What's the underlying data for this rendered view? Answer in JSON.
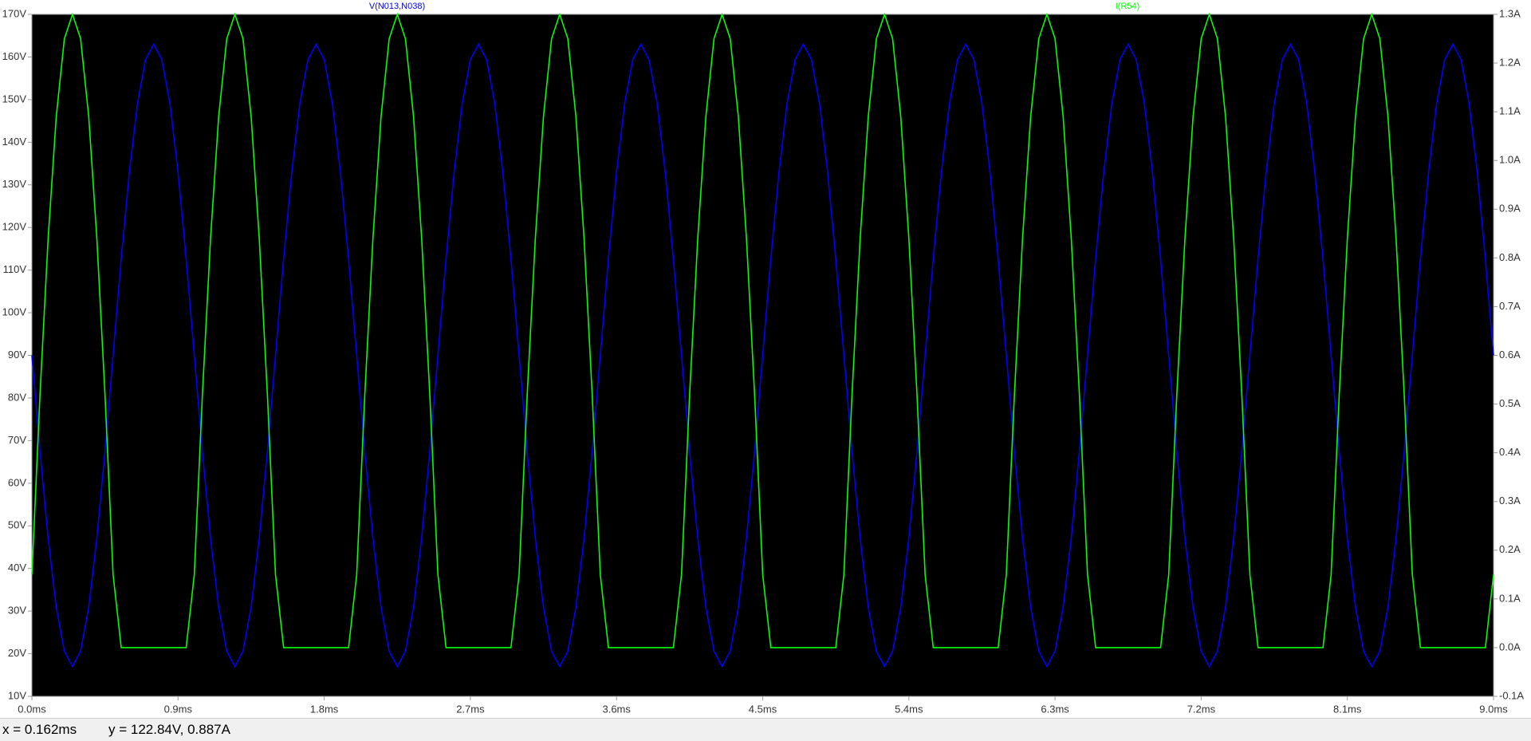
{
  "chart_data": {
    "type": "line",
    "x": [
      0,
      0.05,
      0.1,
      0.15,
      0.2,
      0.25,
      0.3,
      0.35,
      0.4,
      0.45,
      0.5,
      0.55,
      0.6,
      0.65,
      0.7,
      0.75,
      0.8,
      0.85,
      0.9,
      0.95,
      1,
      1.05,
      1.1,
      1.15,
      1.2,
      1.25,
      1.3,
      1.35,
      1.4,
      1.45,
      1.5,
      1.55,
      1.6,
      1.65,
      1.7,
      1.75,
      1.8,
      1.85,
      1.9,
      1.95,
      2,
      2.05,
      2.1,
      2.15,
      2.2,
      2.25,
      2.3,
      2.35,
      2.4,
      2.45,
      2.5,
      2.55,
      2.6,
      2.65,
      2.7,
      2.75,
      2.8,
      2.85,
      2.9,
      2.95,
      3,
      3.05,
      3.1,
      3.15,
      3.2,
      3.25,
      3.3,
      3.35,
      3.4,
      3.45,
      3.5,
      3.55,
      3.6,
      3.65,
      3.7,
      3.75,
      3.8,
      3.85,
      3.9,
      3.95,
      4,
      4.05,
      4.1,
      4.15,
      4.2,
      4.25,
      4.3,
      4.35,
      4.4,
      4.45,
      4.5,
      4.55,
      4.6,
      4.65,
      4.7,
      4.75,
      4.8,
      4.85,
      4.9,
      4.95,
      5,
      5.05,
      5.1,
      5.15,
      5.2,
      5.25,
      5.3,
      5.35,
      5.4,
      5.45,
      5.5,
      5.55,
      5.6,
      5.65,
      5.7,
      5.75,
      5.8,
      5.85,
      5.9,
      5.95,
      6,
      6.05,
      6.1,
      6.15,
      6.2,
      6.25,
      6.3,
      6.35,
      6.4,
      6.45,
      6.5,
      6.55,
      6.6,
      6.65,
      6.7,
      6.75,
      6.8,
      6.85,
      6.9,
      6.95,
      7,
      7.05,
      7.1,
      7.15,
      7.2,
      7.25,
      7.3,
      7.35,
      7.4,
      7.45,
      7.5,
      7.55,
      7.6,
      7.65,
      7.7,
      7.75,
      7.8,
      7.85,
      7.9,
      7.95,
      8,
      8.05,
      8.1,
      8.15,
      8.2,
      8.25,
      8.3,
      8.35,
      8.4,
      8.45,
      8.5,
      8.55,
      8.6,
      8.65,
      8.7,
      8.75,
      8.8,
      8.85,
      8.9,
      8.95,
      9
    ],
    "series": [
      {
        "name": "V(N013,N038)",
        "color": "#0000ff",
        "values": [
          90,
          67.4,
          47.1,
          30.9,
          20.6,
          17,
          20.6,
          30.9,
          47.1,
          67.4,
          90,
          112.6,
          132.9,
          149.1,
          159.4,
          163,
          159.4,
          149.1,
          132.9,
          112.6,
          90,
          67.4,
          47.1,
          30.9,
          20.6,
          17,
          20.6,
          30.9,
          47.1,
          67.4,
          90,
          112.6,
          132.9,
          149.1,
          159.4,
          163,
          159.4,
          149.1,
          132.9,
          112.6,
          90,
          67.4,
          47.1,
          30.9,
          20.6,
          17,
          20.6,
          30.9,
          47.1,
          67.4,
          90,
          112.6,
          132.9,
          149.1,
          159.4,
          163,
          159.4,
          149.1,
          132.9,
          112.6,
          90,
          67.4,
          47.1,
          30.9,
          20.6,
          17,
          20.6,
          30.9,
          47.1,
          67.4,
          90,
          112.6,
          132.9,
          149.1,
          159.4,
          163,
          159.4,
          149.1,
          132.9,
          112.6,
          90,
          67.4,
          47.1,
          30.9,
          20.6,
          17,
          20.6,
          30.9,
          47.1,
          67.4,
          90,
          112.6,
          132.9,
          149.1,
          159.4,
          163,
          159.4,
          149.1,
          132.9,
          112.6,
          90,
          67.4,
          47.1,
          30.9,
          20.6,
          17,
          20.6,
          30.9,
          47.1,
          67.4,
          90,
          112.6,
          132.9,
          149.1,
          159.4,
          163,
          159.4,
          149.1,
          132.9,
          112.6,
          90,
          67.4,
          47.1,
          30.9,
          20.6,
          17,
          20.6,
          30.9,
          47.1,
          67.4,
          90,
          112.6,
          132.9,
          149.1,
          159.4,
          163,
          159.4,
          149.1,
          132.9,
          112.6,
          90,
          67.4,
          47.1,
          30.9,
          20.6,
          17,
          20.6,
          30.9,
          47.1,
          67.4,
          90,
          112.6,
          132.9,
          149.1,
          159.4,
          163,
          159.4,
          149.1,
          132.9,
          112.6,
          90,
          67.4,
          47.1,
          30.9,
          20.6,
          17,
          20.6,
          30.9,
          47.1,
          67.4,
          90,
          112.6,
          132.9,
          149.1,
          159.4,
          163,
          159.4,
          149.1,
          132.9,
          112.6,
          90
        ]
      },
      {
        "name": "I(R54)",
        "color": "#00ff00",
        "axis": "y2",
        "values": [
          0.15,
          0.52,
          0.84,
          1.09,
          1.25,
          1.3,
          1.25,
          1.09,
          0.84,
          0.52,
          0.15,
          0,
          0,
          0,
          0,
          0,
          0,
          0,
          0,
          0,
          0.15,
          0.52,
          0.84,
          1.09,
          1.25,
          1.3,
          1.25,
          1.09,
          0.84,
          0.52,
          0.15,
          0,
          0,
          0,
          0,
          0,
          0,
          0,
          0,
          0,
          0.15,
          0.52,
          0.84,
          1.09,
          1.25,
          1.3,
          1.25,
          1.09,
          0.84,
          0.52,
          0.15,
          0,
          0,
          0,
          0,
          0,
          0,
          0,
          0,
          0,
          0.15,
          0.52,
          0.84,
          1.09,
          1.25,
          1.3,
          1.25,
          1.09,
          0.84,
          0.52,
          0.15,
          0,
          0,
          0,
          0,
          0,
          0,
          0,
          0,
          0,
          0.15,
          0.52,
          0.84,
          1.09,
          1.25,
          1.3,
          1.25,
          1.09,
          0.84,
          0.52,
          0.15,
          0,
          0,
          0,
          0,
          0,
          0,
          0,
          0,
          0,
          0.15,
          0.52,
          0.84,
          1.09,
          1.25,
          1.3,
          1.25,
          1.09,
          0.84,
          0.52,
          0.15,
          0,
          0,
          0,
          0,
          0,
          0,
          0,
          0,
          0,
          0.15,
          0.52,
          0.84,
          1.09,
          1.25,
          1.3,
          1.25,
          1.09,
          0.84,
          0.52,
          0.15,
          0,
          0,
          0,
          0,
          0,
          0,
          0,
          0,
          0,
          0.15,
          0.52,
          0.84,
          1.09,
          1.25,
          1.3,
          1.25,
          1.09,
          0.84,
          0.52,
          0.15,
          0,
          0,
          0,
          0,
          0,
          0,
          0,
          0,
          0,
          0.15,
          0.52,
          0.84,
          1.09,
          1.25,
          1.3,
          1.25,
          1.09,
          0.84,
          0.52,
          0.15,
          0,
          0,
          0,
          0,
          0,
          0,
          0,
          0,
          0,
          0.15
        ]
      }
    ],
    "xlim": [
      0,
      9
    ],
    "xticks": [
      {
        "value": 0,
        "label": "0.0ms"
      },
      {
        "value": 0.9,
        "label": "0.9ms"
      },
      {
        "value": 1.8,
        "label": "1.8ms"
      },
      {
        "value": 2.7,
        "label": "2.7ms"
      },
      {
        "value": 3.6,
        "label": "3.6ms"
      },
      {
        "value": 4.5,
        "label": "4.5ms"
      },
      {
        "value": 5.4,
        "label": "5.4ms"
      },
      {
        "value": 6.3,
        "label": "6.3ms"
      },
      {
        "value": 7.2,
        "label": "7.2ms"
      },
      {
        "value": 8.1,
        "label": "8.1ms"
      },
      {
        "value": 9,
        "label": "9.0ms"
      }
    ],
    "ylim": [
      10,
      170
    ],
    "yticks": [
      {
        "value": 10,
        "label": "10V"
      },
      {
        "value": 20,
        "label": "20V"
      },
      {
        "value": 30,
        "label": "30V"
      },
      {
        "value": 40,
        "label": "40V"
      },
      {
        "value": 50,
        "label": "50V"
      },
      {
        "value": 60,
        "label": "60V"
      },
      {
        "value": 70,
        "label": "70V"
      },
      {
        "value": 80,
        "label": "80V"
      },
      {
        "value": 90,
        "label": "90V"
      },
      {
        "value": 100,
        "label": "100V"
      },
      {
        "value": 110,
        "label": "110V"
      },
      {
        "value": 120,
        "label": "120V"
      },
      {
        "value": 130,
        "label": "130V"
      },
      {
        "value": 140,
        "label": "140V"
      },
      {
        "value": 150,
        "label": "150V"
      },
      {
        "value": 160,
        "label": "160V"
      },
      {
        "value": 170,
        "label": "170V"
      }
    ],
    "y2lim": [
      -0.1,
      1.3
    ],
    "y2ticks": [
      {
        "value": -0.1,
        "label": "-0.1A"
      },
      {
        "value": 0,
        "label": "0.0A"
      },
      {
        "value": 0.1,
        "label": "0.1A"
      },
      {
        "value": 0.2,
        "label": "0.2A"
      },
      {
        "value": 0.3,
        "label": "0.3A"
      },
      {
        "value": 0.4,
        "label": "0.4A"
      },
      {
        "value": 0.5,
        "label": "0.5A"
      },
      {
        "value": 0.6,
        "label": "0.6A"
      },
      {
        "value": 0.7,
        "label": "0.7A"
      },
      {
        "value": 0.8,
        "label": "0.8A"
      },
      {
        "value": 0.9,
        "label": "0.9A"
      },
      {
        "value": 1,
        "label": "1.0A"
      },
      {
        "value": 1.1,
        "label": "1.1A"
      },
      {
        "value": 1.2,
        "label": "1.2A"
      },
      {
        "value": 1.3,
        "label": "1.3A"
      }
    ],
    "grid": false
  },
  "status": {
    "x": "x = 0.162ms",
    "y": "y = 122.84V, 0.887A"
  }
}
